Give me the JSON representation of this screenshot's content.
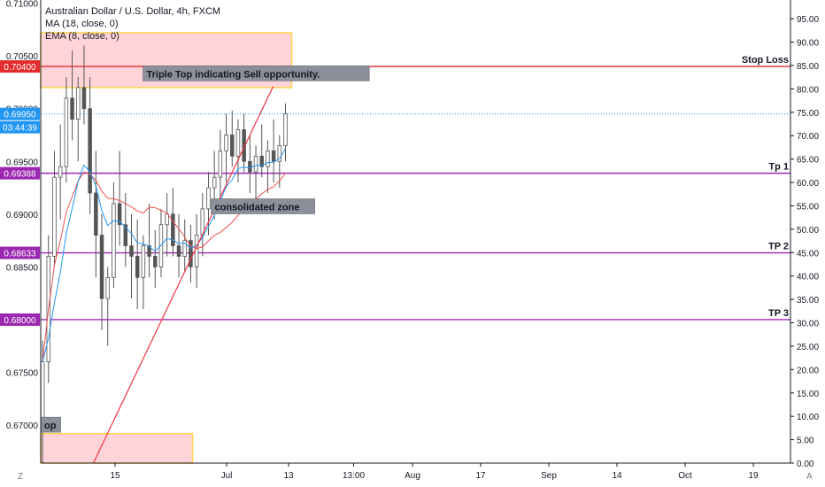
{
  "legend": {
    "title": "Australian Dollar / U.S. Dollar, 4h, FXCM",
    "ma": "MA (18, close, 0)",
    "ema": "EMA (8, close, 0)"
  },
  "axis_corner_left": "Z",
  "axis_corner_right": "A",
  "colors": {
    "stop_loss": "#e52b2b",
    "take_profit": "#9c27b0",
    "current_price": "#2196f3",
    "zone_fill": "#ffcdd2",
    "zone_border": "#ffd54f",
    "trendline": "#f23645",
    "candle": "#555555",
    "ma_line": "#2196f3",
    "ema_line": "#ef5350"
  },
  "chart_data": {
    "type": "candlestick",
    "title": "Australian Dollar / U.S. Dollar, 4h, FXCM",
    "price_axis": {
      "range": [
        0.6664,
        0.7103
      ],
      "ticks": [
        "0.67000",
        "0.67500",
        "0.68000",
        "0.68500",
        "0.69000",
        "0.69500",
        "0.70000",
        "0.70500",
        "0.71000"
      ]
    },
    "percent_axis": {
      "range": [
        0,
        99
      ],
      "ticks": [
        "0.00",
        "5.00",
        "10.00",
        "15.00",
        "20.00",
        "25.00",
        "30.00",
        "35.00",
        "40.00",
        "45.00",
        "50.00",
        "55.00",
        "60.00",
        "65.00",
        "70.00",
        "75.00",
        "80.00",
        "85.00",
        "90.00",
        "95.00"
      ]
    },
    "time_axis": {
      "ticks": [
        {
          "label": "15",
          "t": 12
        },
        {
          "label": "Jul",
          "t": 30
        },
        {
          "label": "13",
          "t": 40
        },
        {
          "label": "13:00",
          "t": 50.5
        },
        {
          "label": "Aug",
          "t": 60
        },
        {
          "label": "17",
          "t": 71
        },
        {
          "label": "Sep",
          "t": 82
        },
        {
          "label": "14",
          "t": 93
        },
        {
          "label": "Oct",
          "t": 104
        },
        {
          "label": "19",
          "t": 115
        }
      ],
      "t_range": [
        0,
        121
      ]
    },
    "price_levels": [
      {
        "label": "Stop Loss",
        "value": 0.704,
        "badge": "0.70400",
        "color": "#e52b2b"
      },
      {
        "label": "Tp 1",
        "value": 0.69388,
        "badge": "0.69388",
        "color": "#9c27b0"
      },
      {
        "label": "TP 2",
        "value": 0.68633,
        "badge": "0.68633",
        "color": "#9c27b0"
      },
      {
        "label": "TP 3",
        "value": 0.68,
        "badge": "0.68000",
        "color": "#9c27b0"
      }
    ],
    "current_price": {
      "value": 0.6995,
      "badge": "0.69950",
      "countdown": "03:44:39"
    },
    "zones": [
      {
        "t0": 0,
        "t1": 40.5,
        "p0": 0.702,
        "p1": 0.7072
      },
      {
        "t0": 0,
        "t1": 24.5,
        "p0": 0.6664,
        "p1": 0.6692
      }
    ],
    "trendline": {
      "t0": 8.5,
      "p0": 0.6664,
      "t1": 37.5,
      "p1": 0.7021
    },
    "annotations": [
      {
        "text": "Triple Top indicating Sell opportunity.",
        "t": 16.5,
        "p": 0.7033
      },
      {
        "text": "consolidated zone",
        "t": 27.5,
        "p": 0.6907
      },
      {
        "text": "op",
        "t": 0,
        "p": 0.67
      }
    ],
    "candles": [
      {
        "o": 0.67,
        "h": 0.678,
        "l": 0.6664,
        "c": 0.676
      },
      {
        "o": 0.676,
        "h": 0.688,
        "l": 0.674,
        "c": 0.686
      },
      {
        "o": 0.686,
        "h": 0.696,
        "l": 0.685,
        "c": 0.6935
      },
      {
        "o": 0.6935,
        "h": 0.6985,
        "l": 0.6895,
        "c": 0.6945
      },
      {
        "o": 0.6945,
        "h": 0.703,
        "l": 0.693,
        "c": 0.701
      },
      {
        "o": 0.701,
        "h": 0.7055,
        "l": 0.697,
        "c": 0.699
      },
      {
        "o": 0.699,
        "h": 0.703,
        "l": 0.695,
        "c": 0.702
      },
      {
        "o": 0.702,
        "h": 0.706,
        "l": 0.6985,
        "c": 0.7
      },
      {
        "o": 0.7,
        "h": 0.703,
        "l": 0.69,
        "c": 0.692
      },
      {
        "o": 0.692,
        "h": 0.696,
        "l": 0.684,
        "c": 0.688
      },
      {
        "o": 0.688,
        "h": 0.69,
        "l": 0.679,
        "c": 0.682
      },
      {
        "o": 0.682,
        "h": 0.685,
        "l": 0.6775,
        "c": 0.684
      },
      {
        "o": 0.684,
        "h": 0.693,
        "l": 0.683,
        "c": 0.691
      },
      {
        "o": 0.691,
        "h": 0.696,
        "l": 0.687,
        "c": 0.689
      },
      {
        "o": 0.689,
        "h": 0.692,
        "l": 0.685,
        "c": 0.687
      },
      {
        "o": 0.687,
        "h": 0.69,
        "l": 0.682,
        "c": 0.686
      },
      {
        "o": 0.686,
        "h": 0.6895,
        "l": 0.681,
        "c": 0.684
      },
      {
        "o": 0.684,
        "h": 0.688,
        "l": 0.681,
        "c": 0.687
      },
      {
        "o": 0.687,
        "h": 0.691,
        "l": 0.684,
        "c": 0.686
      },
      {
        "o": 0.686,
        "h": 0.6885,
        "l": 0.683,
        "c": 0.685
      },
      {
        "o": 0.685,
        "h": 0.6905,
        "l": 0.684,
        "c": 0.689
      },
      {
        "o": 0.689,
        "h": 0.692,
        "l": 0.686,
        "c": 0.69
      },
      {
        "o": 0.69,
        "h": 0.6925,
        "l": 0.686,
        "c": 0.687
      },
      {
        "o": 0.687,
        "h": 0.69,
        "l": 0.684,
        "c": 0.686
      },
      {
        "o": 0.686,
        "h": 0.6895,
        "l": 0.6845,
        "c": 0.6875
      },
      {
        "o": 0.6875,
        "h": 0.689,
        "l": 0.6835,
        "c": 0.685
      },
      {
        "o": 0.685,
        "h": 0.69,
        "l": 0.683,
        "c": 0.688
      },
      {
        "o": 0.688,
        "h": 0.692,
        "l": 0.686,
        "c": 0.6905
      },
      {
        "o": 0.6905,
        "h": 0.694,
        "l": 0.688,
        "c": 0.6925
      },
      {
        "o": 0.6925,
        "h": 0.696,
        "l": 0.6895,
        "c": 0.6935
      },
      {
        "o": 0.6935,
        "h": 0.698,
        "l": 0.691,
        "c": 0.696
      },
      {
        "o": 0.696,
        "h": 0.6995,
        "l": 0.693,
        "c": 0.6975
      },
      {
        "o": 0.6975,
        "h": 0.6998,
        "l": 0.6945,
        "c": 0.6955
      },
      {
        "o": 0.6955,
        "h": 0.699,
        "l": 0.693,
        "c": 0.698
      },
      {
        "o": 0.698,
        "h": 0.6995,
        "l": 0.694,
        "c": 0.695
      },
      {
        "o": 0.695,
        "h": 0.6975,
        "l": 0.692,
        "c": 0.694
      },
      {
        "o": 0.694,
        "h": 0.6965,
        "l": 0.691,
        "c": 0.6955
      },
      {
        "o": 0.6955,
        "h": 0.6985,
        "l": 0.6935,
        "c": 0.6945
      },
      {
        "o": 0.6945,
        "h": 0.697,
        "l": 0.692,
        "c": 0.696
      },
      {
        "o": 0.696,
        "h": 0.699,
        "l": 0.693,
        "c": 0.695
      },
      {
        "o": 0.695,
        "h": 0.6975,
        "l": 0.6925,
        "c": 0.6965
      },
      {
        "o": 0.6965,
        "h": 0.7005,
        "l": 0.695,
        "c": 0.6995
      }
    ]
  }
}
